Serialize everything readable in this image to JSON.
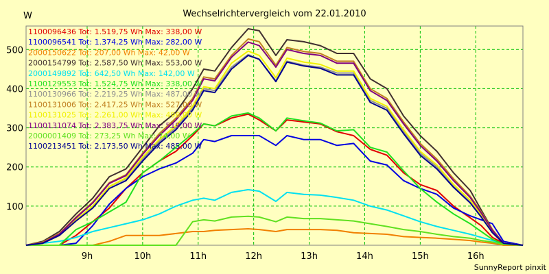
{
  "chart_data": {
    "type": "line",
    "title": "Wechselrichtervergleich vom 22.01.2010",
    "ylabel": "W",
    "footer": "SunnyReport pinxit",
    "ylim": [
      0,
      560
    ],
    "xlim": [
      7.9,
      16.85
    ],
    "y_ticks": [
      100,
      200,
      300,
      400,
      500
    ],
    "x_ticks": [
      {
        "value": 9,
        "label": "9h"
      },
      {
        "value": 10,
        "label": "10h"
      },
      {
        "value": 11,
        "label": "11h"
      },
      {
        "value": 12,
        "label": "12h"
      },
      {
        "value": 13,
        "label": "13h"
      },
      {
        "value": 14,
        "label": "14h"
      },
      {
        "value": 15,
        "label": "15h"
      },
      {
        "value": 16,
        "label": "16h"
      }
    ],
    "grid": true,
    "legend_position": "top-left",
    "series": [
      {
        "name": "1100096436 Tot: 1.519,75 Wh Max: 338,00 W",
        "color": "#e00000",
        "x": [
          7.9,
          8.2,
          8.5,
          8.8,
          9.1,
          9.4,
          9.7,
          10.0,
          10.3,
          10.6,
          10.9,
          11.1,
          11.3,
          11.6,
          11.9,
          12.1,
          12.4,
          12.6,
          12.9,
          13.2,
          13.5,
          13.8,
          14.1,
          14.4,
          14.7,
          15.0,
          15.3,
          15.6,
          15.9,
          16.1,
          16.3,
          16.5,
          16.85
        ],
        "y": [
          0,
          0,
          0,
          25,
          60,
          95,
          145,
          185,
          215,
          240,
          280,
          310,
          305,
          325,
          335,
          320,
          292,
          320,
          315,
          310,
          290,
          280,
          245,
          230,
          185,
          155,
          140,
          100,
          70,
          50,
          20,
          5,
          0
        ]
      },
      {
        "name": "1100096541 Tot: 1.374,25 Wh Max: 282,00 W",
        "color": "#0000e0",
        "x": [
          7.9,
          8.2,
          8.5,
          8.8,
          9.1,
          9.4,
          9.7,
          10.0,
          10.3,
          10.6,
          10.9,
          11.1,
          11.3,
          11.6,
          11.9,
          12.1,
          12.4,
          12.6,
          12.9,
          13.2,
          13.5,
          13.8,
          14.1,
          14.4,
          14.7,
          15.0,
          15.3,
          15.6,
          15.9,
          16.1,
          16.3,
          16.5,
          16.85
        ],
        "y": [
          0,
          0,
          0,
          5,
          50,
          105,
          145,
          175,
          195,
          210,
          235,
          270,
          265,
          280,
          280,
          280,
          255,
          280,
          270,
          270,
          255,
          260,
          215,
          205,
          165,
          145,
          130,
          95,
          75,
          65,
          55,
          10,
          0
        ]
      },
      {
        "name": "2000150622 Tot: 207,00 Wh Max: 42,00 W",
        "color": "#f08000",
        "x": [
          7.9,
          8.2,
          8.5,
          8.8,
          9.1,
          9.4,
          9.7,
          10.0,
          10.3,
          10.6,
          10.9,
          11.1,
          11.3,
          11.6,
          11.9,
          12.1,
          12.4,
          12.6,
          12.9,
          13.2,
          13.5,
          13.8,
          14.1,
          14.4,
          14.7,
          15.0,
          15.3,
          15.6,
          15.9,
          16.1,
          16.3,
          16.5,
          16.85
        ],
        "y": [
          0,
          0,
          0,
          0,
          0,
          10,
          25,
          25,
          25,
          30,
          35,
          35,
          38,
          40,
          42,
          40,
          35,
          40,
          40,
          40,
          38,
          32,
          30,
          28,
          22,
          20,
          18,
          15,
          12,
          8,
          5,
          0,
          0
        ]
      },
      {
        "name": "2000154799 Tot: 2.587,50 Wh Max: 553,00 W",
        "color": "#403030",
        "x": [
          7.9,
          8.2,
          8.5,
          8.8,
          9.1,
          9.4,
          9.7,
          10.0,
          10.3,
          10.6,
          10.9,
          11.1,
          11.3,
          11.6,
          11.9,
          12.1,
          12.4,
          12.6,
          12.9,
          13.2,
          13.5,
          13.8,
          14.1,
          14.4,
          14.7,
          15.0,
          15.3,
          15.6,
          15.9,
          16.1,
          16.3,
          16.5,
          16.85
        ],
        "y": [
          0,
          10,
          35,
          80,
          120,
          175,
          195,
          250,
          305,
          340,
          400,
          450,
          445,
          505,
          553,
          548,
          485,
          525,
          520,
          510,
          490,
          490,
          425,
          400,
          330,
          280,
          240,
          185,
          140,
          90,
          40,
          5,
          0
        ]
      },
      {
        "name": "2000149892 Tot: 642,50 Wh Max: 142,00 W",
        "color": "#00e0f0",
        "x": [
          7.9,
          8.2,
          8.5,
          8.8,
          9.1,
          9.4,
          9.7,
          10.0,
          10.3,
          10.6,
          10.9,
          11.1,
          11.3,
          11.6,
          11.9,
          12.1,
          12.4,
          12.6,
          12.9,
          13.2,
          13.5,
          13.8,
          14.1,
          14.4,
          14.7,
          15.0,
          15.3,
          15.6,
          15.9,
          16.1,
          16.3,
          16.5,
          16.85
        ],
        "y": [
          0,
          5,
          10,
          20,
          35,
          45,
          55,
          65,
          80,
          100,
          115,
          120,
          115,
          135,
          142,
          138,
          112,
          135,
          130,
          128,
          122,
          115,
          100,
          90,
          75,
          60,
          48,
          38,
          28,
          20,
          12,
          3,
          0
        ]
      },
      {
        "name": "1100129553 Tot: 1.524,75 Wh Max: 338,00 W",
        "color": "#20e020",
        "x": [
          7.9,
          8.2,
          8.5,
          8.8,
          9.1,
          9.4,
          9.7,
          10.0,
          10.3,
          10.6,
          10.9,
          11.1,
          11.3,
          11.6,
          11.9,
          12.1,
          12.4,
          12.6,
          12.9,
          13.2,
          13.5,
          13.8,
          14.1,
          14.4,
          14.7,
          15.0,
          15.3,
          15.6,
          15.9,
          16.1,
          16.3,
          16.5,
          16.85
        ],
        "y": [
          0,
          0,
          0,
          40,
          60,
          85,
          110,
          185,
          215,
          250,
          285,
          310,
          305,
          330,
          338,
          325,
          292,
          325,
          318,
          312,
          292,
          295,
          250,
          238,
          190,
          145,
          110,
          80,
          55,
          35,
          15,
          3,
          0
        ]
      },
      {
        "name": "1100130966 Tot: 2.219,25 Wh Max: 487,00 W",
        "color": "#909090",
        "x": [
          7.9,
          8.2,
          8.5,
          8.8,
          9.1,
          9.4,
          9.7,
          10.0,
          10.3,
          10.6,
          10.9,
          11.1,
          11.3,
          11.6,
          11.9,
          12.1,
          12.4,
          12.6,
          12.9,
          13.2,
          13.5,
          13.8,
          14.1,
          14.4,
          14.7,
          15.0,
          15.3,
          15.6,
          15.9,
          16.1,
          16.3,
          16.5,
          16.85
        ],
        "y": [
          0,
          5,
          25,
          65,
          100,
          150,
          170,
          220,
          265,
          300,
          350,
          400,
          395,
          455,
          487,
          475,
          420,
          470,
          460,
          455,
          440,
          440,
          370,
          350,
          290,
          235,
          200,
          150,
          110,
          75,
          35,
          5,
          0
        ]
      },
      {
        "name": "1100131006 Tot: 2.417,25 Wh Max: 527,00 W",
        "color": "#c08020",
        "x": [
          7.9,
          8.2,
          8.5,
          8.8,
          9.1,
          9.4,
          9.7,
          10.0,
          10.3,
          10.6,
          10.9,
          11.1,
          11.3,
          11.6,
          11.9,
          12.1,
          12.4,
          12.6,
          12.9,
          13.2,
          13.5,
          13.8,
          14.1,
          14.4,
          14.7,
          15.0,
          15.3,
          15.6,
          15.9,
          16.1,
          16.3,
          16.5,
          16.85
        ],
        "y": [
          0,
          8,
          30,
          72,
          110,
          160,
          180,
          235,
          285,
          325,
          375,
          430,
          425,
          485,
          527,
          520,
          460,
          505,
          495,
          490,
          470,
          470,
          400,
          375,
          315,
          260,
          220,
          170,
          125,
          85,
          40,
          5,
          0
        ]
      },
      {
        "name": "1100131025 Tot: 2.261,00 Wh Max: 496,00 W",
        "color": "#f0f000",
        "x": [
          7.9,
          8.2,
          8.5,
          8.8,
          9.1,
          9.4,
          9.7,
          10.0,
          10.3,
          10.6,
          10.9,
          11.1,
          11.3,
          11.6,
          11.9,
          12.1,
          12.4,
          12.6,
          12.9,
          13.2,
          13.5,
          13.8,
          14.1,
          14.4,
          14.7,
          15.0,
          15.3,
          15.6,
          15.9,
          16.1,
          16.3,
          16.5,
          16.85
        ],
        "y": [
          0,
          5,
          25,
          65,
          100,
          150,
          172,
          225,
          270,
          305,
          355,
          405,
          400,
          465,
          496,
          485,
          428,
          478,
          468,
          462,
          445,
          445,
          375,
          355,
          295,
          240,
          205,
          155,
          115,
          78,
          36,
          5,
          0
        ]
      },
      {
        "name": "1100131074 Tot: 2.383,75 Wh Max: 519,00 W",
        "color": "#800080",
        "x": [
          7.9,
          8.2,
          8.5,
          8.8,
          9.1,
          9.4,
          9.7,
          10.0,
          10.3,
          10.6,
          10.9,
          11.1,
          11.3,
          11.6,
          11.9,
          12.1,
          12.4,
          12.6,
          12.9,
          13.2,
          13.5,
          13.8,
          14.1,
          14.4,
          14.7,
          15.0,
          15.3,
          15.6,
          15.9,
          16.1,
          16.3,
          16.5,
          16.85
        ],
        "y": [
          0,
          6,
          28,
          70,
          108,
          158,
          178,
          232,
          280,
          320,
          370,
          425,
          420,
          480,
          519,
          510,
          455,
          500,
          490,
          485,
          465,
          465,
          395,
          370,
          310,
          255,
          215,
          165,
          122,
          82,
          38,
          5,
          0
        ]
      },
      {
        "name": "2000001409 Tot: 273,25 Wh Max: 74,00 W",
        "color": "#60e020",
        "x": [
          7.9,
          8.2,
          8.5,
          8.8,
          9.1,
          9.4,
          9.7,
          10.0,
          10.3,
          10.6,
          10.9,
          11.1,
          11.3,
          11.6,
          11.9,
          12.1,
          12.4,
          12.6,
          12.9,
          13.2,
          13.5,
          13.8,
          14.1,
          14.4,
          14.7,
          15.0,
          15.3,
          15.6,
          15.9,
          16.1,
          16.3,
          16.5,
          16.85
        ],
        "y": [
          0,
          0,
          0,
          0,
          0,
          0,
          0,
          0,
          0,
          0,
          60,
          65,
          62,
          72,
          74,
          72,
          60,
          72,
          68,
          68,
          65,
          62,
          55,
          48,
          40,
          35,
          28,
          22,
          18,
          12,
          8,
          2,
          0
        ]
      },
      {
        "name": "1100213451 Tot: 2.173,50 Wh Max: 485,00 W",
        "color": "#000090",
        "x": [
          7.9,
          8.2,
          8.5,
          8.8,
          9.1,
          9.4,
          9.7,
          10.0,
          10.3,
          10.6,
          10.9,
          11.1,
          11.3,
          11.6,
          11.9,
          12.1,
          12.4,
          12.6,
          12.9,
          13.2,
          13.5,
          13.8,
          14.1,
          14.4,
          14.7,
          15.0,
          15.3,
          15.6,
          15.9,
          16.1,
          16.3,
          16.5,
          16.85
        ],
        "y": [
          0,
          5,
          25,
          62,
          95,
          145,
          165,
          215,
          260,
          295,
          345,
          395,
          390,
          450,
          485,
          475,
          418,
          468,
          458,
          452,
          435,
          435,
          365,
          345,
          285,
          230,
          195,
          148,
          108,
          72,
          32,
          5,
          0
        ]
      }
    ]
  }
}
